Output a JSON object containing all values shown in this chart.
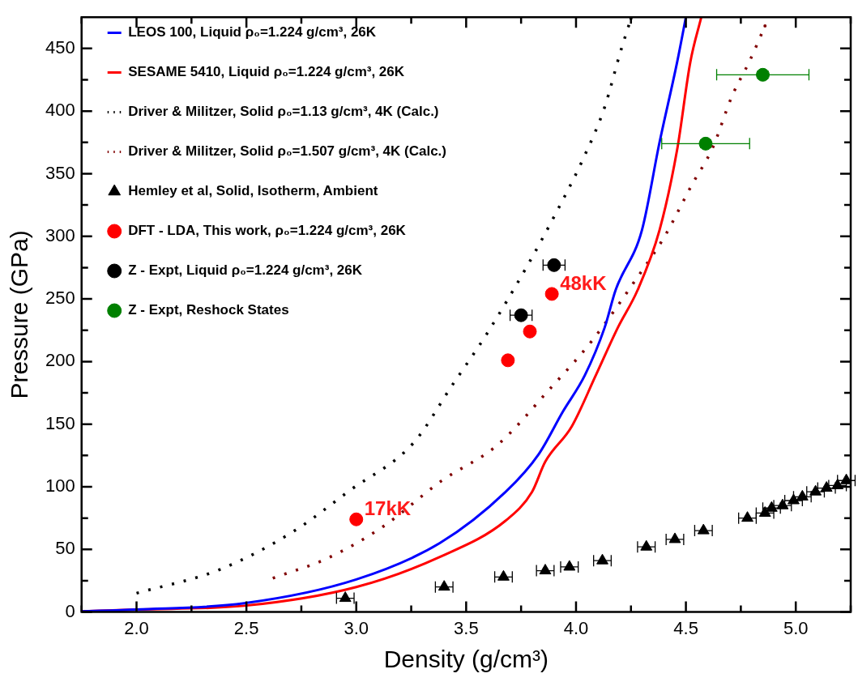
{
  "chart_data": {
    "type": "scatter",
    "xlabel": "Density (g/cm³)",
    "ylabel": "Pressure (GPa)",
    "xlim": [
      1.75,
      5.25
    ],
    "ylim": [
      0,
      475
    ],
    "xticks": [
      {
        "value": 1.75,
        "label": null
      },
      {
        "value": 2,
        "label": "2.0"
      },
      {
        "value": 2.25,
        "label": null
      },
      {
        "value": 2.5,
        "label": "2.5"
      },
      {
        "value": 2.75,
        "label": null
      },
      {
        "value": 3,
        "label": "3.0"
      },
      {
        "value": 3.25,
        "label": null
      },
      {
        "value": 3.5,
        "label": "3.5"
      },
      {
        "value": 3.75,
        "label": null
      },
      {
        "value": 4,
        "label": "4.0"
      },
      {
        "value": 4.25,
        "label": null
      },
      {
        "value": 4.5,
        "label": "4.5"
      },
      {
        "value": 4.75,
        "label": null
      },
      {
        "value": 5,
        "label": "5.0"
      },
      {
        "value": 5.25,
        "label": null
      }
    ],
    "yticks": [
      0,
      {
        "value": 25,
        "label": null
      },
      50,
      {
        "value": 75,
        "label": null
      },
      100,
      {
        "value": 125,
        "label": null
      },
      150,
      {
        "value": 175,
        "label": null
      },
      200,
      {
        "value": 225,
        "label": null
      },
      250,
      {
        "value": 275,
        "label": null
      },
      300,
      {
        "value": 325,
        "label": null
      },
      350,
      {
        "value": 375,
        "label": null
      },
      400,
      {
        "value": 425,
        "label": null
      },
      450
    ],
    "grid": false,
    "legend": "top left",
    "annotations": [
      {
        "text": "17kK",
        "x": 3.0,
        "y": 74
      },
      {
        "text": "48kK",
        "x": 3.89,
        "y": 254
      }
    ],
    "series": [
      {
        "name": "LEOS 100, Liquid ρ₀=1.224 g/cm³, 26K",
        "type": "line",
        "color": "#0000ff",
        "marker": "none",
        "line_style": "solid",
        "x": [
          1.75,
          2.0,
          2.49,
          3.0,
          3.38,
          3.68,
          3.83,
          3.94,
          4.04,
          4.13,
          4.18,
          4.3,
          4.38,
          4.46,
          4.5
        ],
        "values": [
          0.5,
          2,
          7,
          26,
          55,
          96,
          126,
          160,
          189,
          227,
          257,
          305,
          375,
          439,
          475
        ]
      },
      {
        "name": "SESAME 5410, Liquid ρ₀=1.224 g/cm³, 26K",
        "type": "line",
        "color": "#ff0000",
        "marker": "none",
        "line_style": "solid",
        "x": [
          1.75,
          2.0,
          2.49,
          3.0,
          3.38,
          3.68,
          3.8,
          3.86,
          3.98,
          4.09,
          4.19,
          4.28,
          4.38,
          4.46,
          4.52,
          4.57
        ],
        "values": [
          0.5,
          2,
          5,
          20,
          44,
          73,
          96,
          120,
          148,
          189,
          227,
          257,
          305,
          369,
          439,
          475
        ]
      },
      {
        "name": "Driver & Militzer, Solid ρ₀=1.13 g/cm³, 4K (Calc.)",
        "type": "line",
        "color": "#000000",
        "marker": "none",
        "line_style": "dotted",
        "x": [
          2.0,
          2.38,
          2.72,
          2.97,
          3.26,
          3.44,
          3.59,
          3.78,
          3.91,
          4.03,
          4.13,
          4.2,
          4.25
        ],
        "values": [
          15,
          34,
          65,
          97,
          135,
          182,
          221,
          277,
          319,
          361,
          403,
          446,
          474
        ]
      },
      {
        "name": "Driver & Militzer, Solid ρ₀=1.507 g/cm³, 4K (Calc.)",
        "type": "line",
        "color": "#800000",
        "marker": "none",
        "line_style": "dotted",
        "x": [
          2.62,
          2.87,
          3.12,
          3.39,
          3.64,
          3.88,
          4.07,
          4.29,
          4.4,
          4.53,
          4.62,
          4.71,
          4.79,
          4.86
        ],
        "values": [
          27,
          43,
          68,
          105,
          133,
          178,
          216,
          270,
          299,
          342,
          370,
          412,
          440,
          468
        ]
      },
      {
        "name": "Hemley et al, Solid, Isotherm, Ambient",
        "color": "#000000",
        "marker": "triangle",
        "x": [
          2.95,
          3.4,
          3.67,
          3.86,
          3.97,
          4.12,
          4.32,
          4.45,
          4.58,
          4.78,
          4.86,
          4.89,
          4.94,
          4.99,
          5.03,
          5.09,
          5.14,
          5.19,
          5.23
        ],
        "values": [
          11,
          20,
          28,
          33,
          36,
          41,
          52,
          58,
          65,
          75,
          79,
          83,
          85,
          89,
          92,
          96,
          99,
          101,
          105
        ],
        "xerrors": [
          0.04,
          0.04,
          0.04,
          0.04,
          0.04,
          0.04,
          0.04,
          0.04,
          0.04,
          0.04,
          0.04,
          0.04,
          0.04,
          0.04,
          0.04,
          0.04,
          0.04,
          0.04,
          0.04
        ]
      },
      {
        "name": "DFT - LDA, This work, ρ₀=1.224 g/cm³, 26K",
        "color": "#ff0000",
        "marker": "circle",
        "x": [
          3.0,
          3.69,
          3.79,
          3.89
        ],
        "values": [
          74,
          201,
          224,
          254
        ]
      },
      {
        "name": "Z - Expt, Liquid ρ₀=1.224 g/cm³, 26K",
        "color": "#000000",
        "marker": "circle",
        "x": [
          3.75,
          3.9
        ],
        "values": [
          237,
          277
        ],
        "xerrors": [
          0.05,
          0.05
        ]
      },
      {
        "name": "Z - Expt, Reshock States",
        "color": "#008000",
        "marker": "circle",
        "x": [
          4.59,
          4.85
        ],
        "values": [
          374,
          429
        ],
        "xerrors": [
          0.2,
          0.21
        ],
        "errors": [
          3,
          3
        ]
      }
    ]
  }
}
